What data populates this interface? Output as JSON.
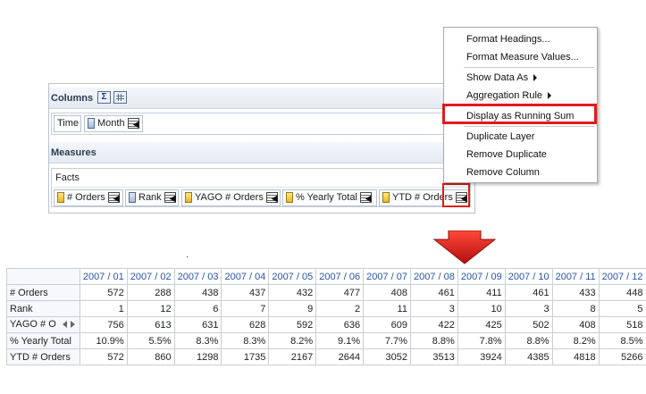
{
  "layout_panel": {
    "columns_title": "Columns",
    "sum_icon_glyph": "Σ",
    "column_chips": [
      {
        "label": "Time",
        "icon": "none"
      },
      {
        "label": "Month",
        "icon": "hierarchy-column-icon"
      }
    ],
    "measures_title": "Measures",
    "facts_label": "Facts",
    "measure_chips": [
      {
        "label": "# Orders"
      },
      {
        "label": "Rank"
      },
      {
        "label": "YAGO # Orders"
      },
      {
        "label": "% Yearly Total"
      },
      {
        "label": "YTD # Orders"
      }
    ]
  },
  "context_menu": {
    "items": [
      {
        "label": "Format Headings..."
      },
      {
        "label": "Format Measure Values..."
      },
      {
        "label": "Show Data As",
        "submenu": true
      },
      {
        "label": "Aggregation Rule",
        "submenu": true
      },
      {
        "label": "Display as Running Sum",
        "highlighted": true
      },
      {
        "label": "Duplicate Layer"
      },
      {
        "label": "Remove Duplicate"
      },
      {
        "label": "Remove Column"
      }
    ]
  },
  "annotation": {
    "dot": ".",
    "highlight_color": "#e01b1b"
  },
  "results": {
    "columns": [
      "2007 / 01",
      "2007 / 02",
      "2007 / 03",
      "2007 / 04",
      "2007 / 05",
      "2007 / 06",
      "2007 / 07",
      "2007 / 08",
      "2007 / 09",
      "2007 / 10",
      "2007 / 11",
      "2007 / 12"
    ],
    "rows": [
      {
        "label": "# Orders",
        "values": [
          "572",
          "288",
          "438",
          "437",
          "432",
          "477",
          "408",
          "461",
          "411",
          "461",
          "433",
          "448"
        ]
      },
      {
        "label": "Rank",
        "values": [
          "1",
          "12",
          "6",
          "7",
          "9",
          "2",
          "11",
          "3",
          "10",
          "3",
          "8",
          "5"
        ]
      },
      {
        "label": "YAGO # O",
        "values": [
          "756",
          "613",
          "631",
          "628",
          "592",
          "636",
          "609",
          "422",
          "425",
          "502",
          "408",
          "518"
        ],
        "pager": true
      },
      {
        "label": "% Yearly Total",
        "values": [
          "10.9%",
          "5.5%",
          "8.3%",
          "8.3%",
          "8.2%",
          "9.1%",
          "7.7%",
          "8.8%",
          "7.8%",
          "8.8%",
          "8.2%",
          "8.5%"
        ]
      },
      {
        "label": "YTD # Orders",
        "values": [
          "572",
          "860",
          "1298",
          "1735",
          "2167",
          "2644",
          "3052",
          "3513",
          "3924",
          "4385",
          "4818",
          "5266"
        ]
      }
    ]
  }
}
